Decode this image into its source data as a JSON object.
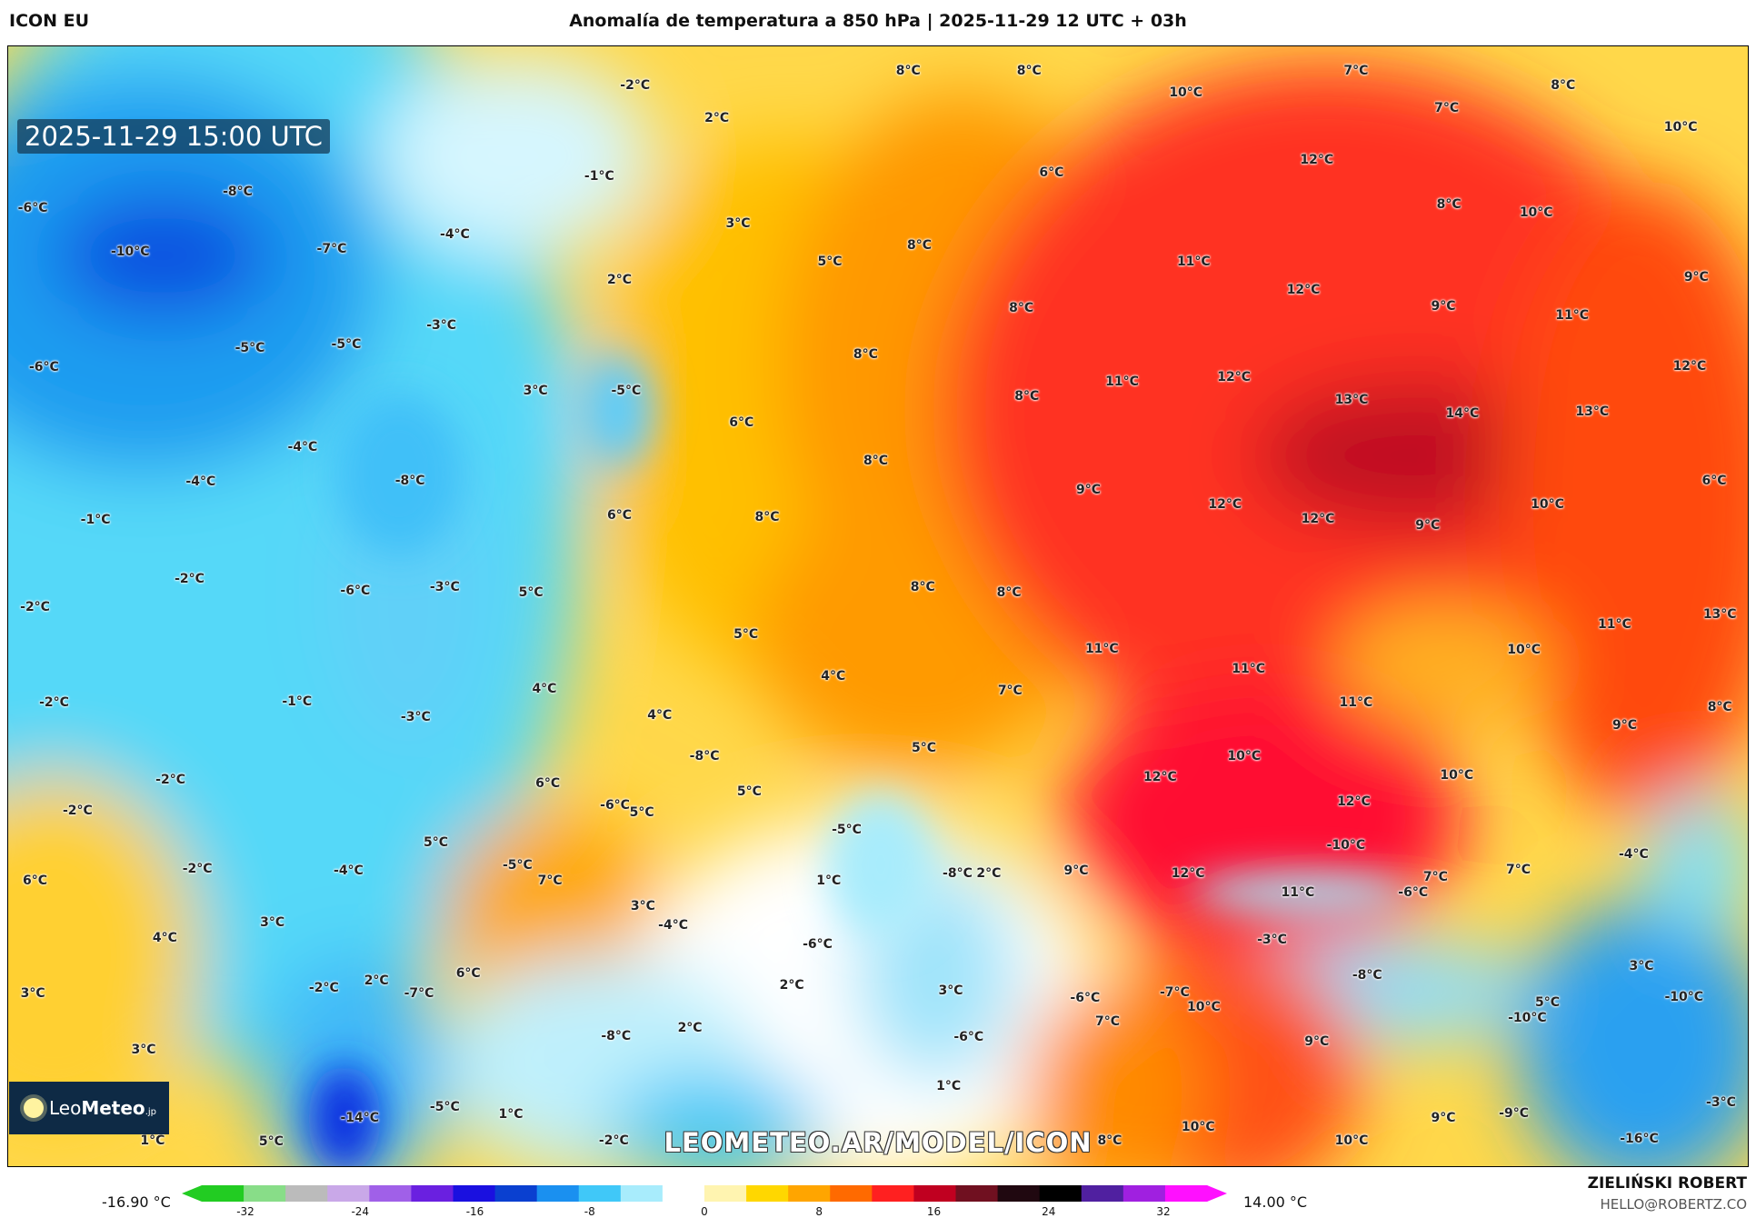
{
  "header": {
    "model": "ICON EU",
    "title": "Anomalía de temperatura a 850 hPa | 2025-11-29 12 UTC + 03h"
  },
  "timestamp": "2025-11-29 15:00 UTC",
  "logo": {
    "text_light": "Leo",
    "text_bold": "Meteo",
    "suffix": ".jp"
  },
  "watermark": "LEOMETEO.AR/MODEL/ICON",
  "colorbar": {
    "min_label": "-16.90 °C",
    "max_label": "14.00 °C",
    "ticks": [
      "-32",
      "-24",
      "-16",
      "-8",
      "0",
      "8",
      "16",
      "24",
      "32"
    ],
    "colors": [
      "#22cc22",
      "#88dd88",
      "#bbbbbb",
      "#c9a8e8",
      "#a060e8",
      "#6a20e0",
      "#1a10e0",
      "#0a40d0",
      "#1a90f0",
      "#40c8f8",
      "#a8ecfc",
      "#ffffff",
      "#fff4b0",
      "#ffd700",
      "#ffa500",
      "#ff6a00",
      "#ff2020",
      "#c00020",
      "#701020",
      "#200810",
      "#000000",
      "#5020a0",
      "#a020e0",
      "#ff10ff"
    ]
  },
  "author": {
    "name": "ZIELIŃSKI ROBERT",
    "email": "HELLO@ROBERTZ.CO"
  },
  "map_labels": [
    "-2°C",
    "8°C",
    "8°C",
    "10°C",
    "7°C",
    "7°C",
    "8°C",
    "10°C",
    "2°C",
    "-1°C",
    "-8°C",
    "6°C",
    "12°C",
    "-6°C",
    "-10°C",
    "-7°C",
    "-4°C",
    "3°C",
    "8°C",
    "10°C",
    "5°C",
    "8°C",
    "11°C",
    "2°C",
    "12°C",
    "9°C",
    "11°C",
    "9°C",
    "-5°C",
    "-5°C",
    "-3°C",
    "8°C",
    "8°C",
    "-6°C",
    "3°C",
    "-5°C",
    "11°C",
    "12°C",
    "13°C",
    "14°C",
    "13°C",
    "12°C",
    "8°C",
    "6°C",
    "-4°C",
    "-4°C",
    "-8°C",
    "8°C",
    "9°C",
    "6°C",
    "-1°C",
    "6°C",
    "8°C",
    "12°C",
    "12°C",
    "9°C",
    "10°C",
    "-2°C",
    "5°C",
    "-6°C",
    "-3°C",
    "8°C",
    "8°C",
    "-2°C",
    "13°C",
    "5°C",
    "11°C",
    "11°C",
    "10°C",
    "-2°C",
    "4°C",
    "-1°C",
    "-3°C",
    "4°C",
    "4°C",
    "11°C",
    "7°C",
    "11°C",
    "8°C",
    "9°C",
    "5°C",
    "-8°C",
    "10°C",
    "12°C",
    "10°C",
    "-2°C",
    "6°C",
    "-2°C",
    "5°C",
    "-6°C",
    "5°C",
    "-5°C",
    "12°C",
    "-10°C",
    "-4°C",
    "5°C",
    "-4°C",
    "1°C",
    "-8°C",
    "2°C",
    "9°C",
    "12°C",
    "7°C",
    "7°C",
    "-2°C",
    "-5°C",
    "7°C",
    "6°C",
    "11°C",
    "-6°C",
    "3°C",
    "4°C",
    "3°C",
    "-4°C",
    "-6°C",
    "-3°C",
    "3°C",
    "-8°C",
    "3°C",
    "2°C",
    "6°C",
    "-2°C",
    "-7°C",
    "2°C",
    "3°C",
    "-6°C",
    "-7°C",
    "10°C",
    "-10°C",
    "5°C",
    "-10°C",
    "7°C",
    "2°C",
    "-8°C",
    "-6°C",
    "9°C",
    "3°C",
    "1°C",
    "-14°C",
    "-5°C",
    "1°C",
    "9°C",
    "-9°C",
    "-3°C",
    "1°C",
    "5°C",
    "-2°C",
    "8°C",
    "10°C",
    "10°C",
    "-16°C"
  ]
}
